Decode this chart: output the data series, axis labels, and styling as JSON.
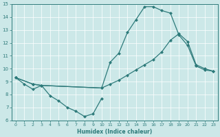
{
  "xlabel": "Humidex (Indice chaleur)",
  "xlim": [
    -0.5,
    23.5
  ],
  "ylim": [
    6,
    15
  ],
  "xticks": [
    0,
    1,
    2,
    3,
    4,
    5,
    6,
    7,
    8,
    9,
    10,
    11,
    12,
    13,
    14,
    15,
    16,
    17,
    18,
    19,
    20,
    21,
    22,
    23
  ],
  "yticks": [
    6,
    7,
    8,
    9,
    10,
    11,
    12,
    13,
    14,
    15
  ],
  "bg_color": "#cce8e8",
  "line_color": "#2d7a7a",
  "grid_color": "#b0d4d4",
  "line1_x": [
    0,
    1,
    2,
    3,
    4,
    5,
    6,
    7,
    8,
    9,
    10
  ],
  "line1_y": [
    9.3,
    8.8,
    8.4,
    8.7,
    7.9,
    7.5,
    7.0,
    6.7,
    6.3,
    6.5,
    7.7
  ],
  "line2_x": [
    0,
    2,
    3,
    10,
    11,
    12,
    13,
    14,
    15,
    16,
    17,
    18,
    19,
    20,
    21,
    22,
    23
  ],
  "line2_y": [
    9.3,
    8.8,
    8.7,
    8.5,
    10.5,
    11.2,
    12.8,
    13.8,
    14.8,
    14.8,
    14.5,
    14.3,
    12.6,
    11.8,
    10.2,
    9.9,
    9.8
  ],
  "line3_x": [
    0,
    2,
    3,
    10,
    11,
    12,
    13,
    14,
    15,
    16,
    17,
    18,
    19,
    20,
    21,
    22,
    23
  ],
  "line3_y": [
    9.3,
    8.8,
    8.7,
    8.5,
    8.8,
    9.1,
    9.5,
    9.9,
    10.3,
    10.7,
    11.3,
    12.2,
    12.7,
    12.1,
    10.3,
    10.0,
    9.8
  ]
}
